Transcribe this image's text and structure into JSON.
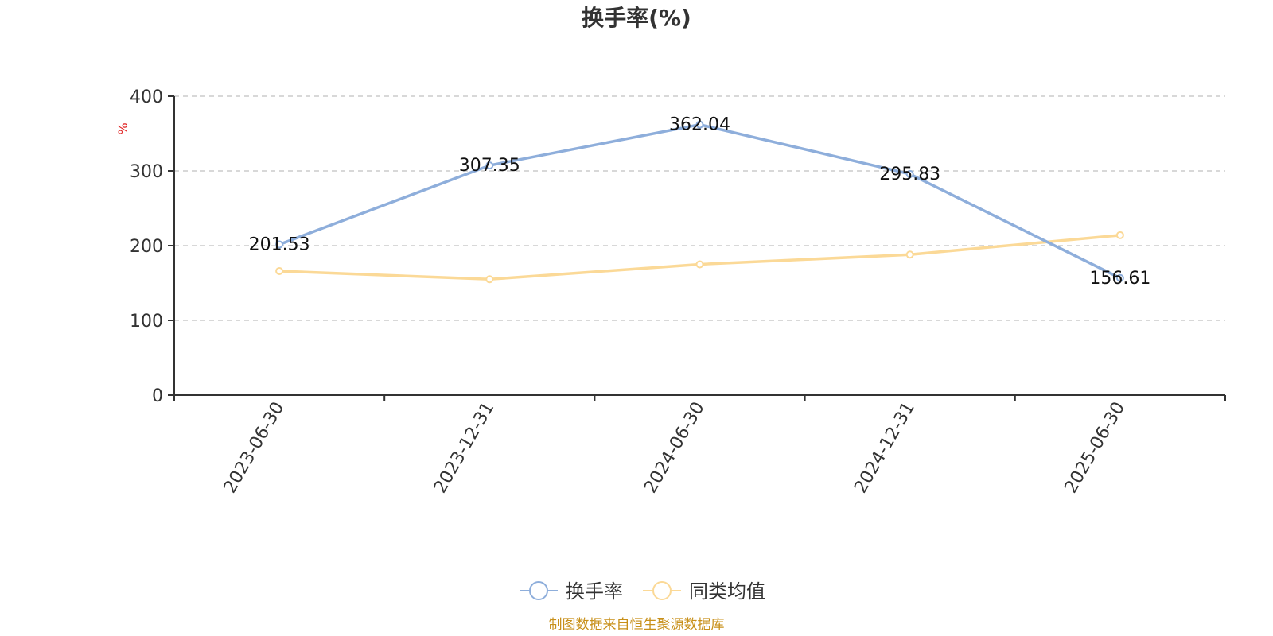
{
  "chart_data": {
    "type": "line",
    "title": "换手率(%)",
    "ylabel": "%",
    "xlabel": "",
    "categories": [
      "2023-06-30",
      "2023-12-31",
      "2024-06-30",
      "2024-12-31",
      "2025-06-30"
    ],
    "ylim": [
      0,
      400
    ],
    "yticks": [
      0,
      100,
      200,
      300,
      400
    ],
    "grid": true,
    "legend_position": "bottom-center",
    "series": [
      {
        "name": "换手率",
        "values": [
          201.53,
          307.35,
          362.04,
          295.83,
          156.61
        ],
        "color": "#8eaedb",
        "data_labels": [
          "201.53",
          "307.35",
          "362.04",
          "295.83",
          "156.61"
        ]
      },
      {
        "name": "同类均值",
        "values": [
          166,
          155,
          175,
          188,
          214
        ],
        "color": "#fbd997"
      }
    ]
  },
  "colors": {
    "unit_label": "#e02020",
    "source_text": "#c8901a"
  },
  "source": "制图数据来自恒生聚源数据库"
}
